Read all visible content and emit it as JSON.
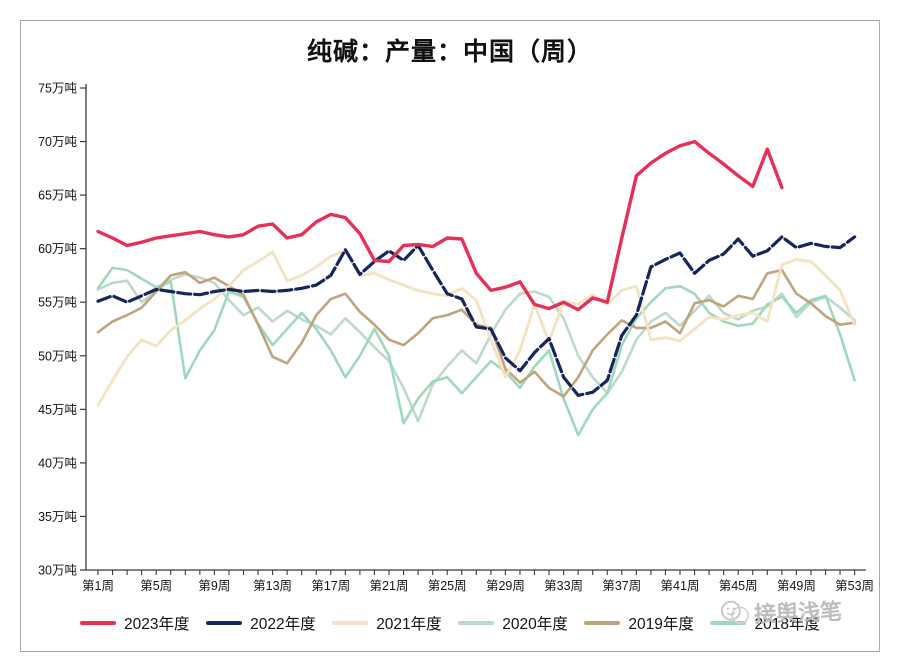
{
  "title": "纯碱：产量：中国（周）",
  "watermark": {
    "text": "接舆浅笔",
    "icon": "smiley-doodle-icon",
    "color": "#bdbdbd"
  },
  "axes": {
    "y_tick_labels": [
      "30万吨",
      "35万吨",
      "40万吨",
      "45万吨",
      "50万吨",
      "55万吨",
      "60万吨",
      "65万吨",
      "70万吨",
      "75万吨"
    ],
    "x_tick_labels": [
      "第1周",
      "第5周",
      "第9周",
      "第13周",
      "第17周",
      "第21周",
      "第25周",
      "第29周",
      "第33周",
      "第37周",
      "第41周",
      "第45周",
      "第49周",
      "第53周"
    ]
  },
  "chart_data": {
    "type": "line",
    "title": "纯碱：产量：中国（周）",
    "xlabel": "",
    "ylabel": "万吨",
    "ylim": [
      30,
      75
    ],
    "y_ticks": [
      30,
      35,
      40,
      45,
      50,
      55,
      60,
      65,
      70,
      75
    ],
    "x_weeks": 53,
    "x_labeled_weeks": [
      1,
      5,
      9,
      13,
      17,
      21,
      25,
      29,
      33,
      37,
      41,
      45,
      49,
      53
    ],
    "grid": false,
    "legend_position": "bottom",
    "series": [
      {
        "name": "2020年度",
        "color": "#bcd9cc",
        "width": 2.6,
        "dash": "",
        "start_week": 1,
        "values": [
          56.2,
          56.8,
          57.0,
          55.0,
          56.0,
          57.1,
          57.6,
          57.3,
          56.8,
          55.2,
          53.8,
          54.5,
          53.2,
          54.2,
          53.4,
          52.8,
          52.0,
          53.5,
          52.2,
          50.8,
          49.5,
          47.0,
          43.9,
          47.3,
          49.0,
          50.5,
          49.3,
          52.0,
          54.3,
          55.8,
          56.0,
          55.5,
          53.5,
          50.0,
          48.0,
          46.5,
          48.5,
          51.5,
          53.2,
          54.0,
          52.8,
          54.2,
          55.6,
          54.0,
          53.4,
          54.2,
          54.6,
          55.8,
          53.6,
          55.0,
          55.5,
          54.5,
          53.3
        ]
      },
      {
        "name": "2018年度",
        "color": "#9fd9bb",
        "width": 2.6,
        "dash": "",
        "start_week": 1,
        "values": [
          56.3,
          58.2,
          58.0,
          57.2,
          56.4,
          56.9,
          47.9,
          50.5,
          52.4,
          56.0,
          55.5,
          53.0,
          51.0,
          52.5,
          54.0,
          52.5,
          50.5,
          48.0,
          50.0,
          52.5,
          50.0,
          43.7,
          46.0,
          47.6,
          48.0,
          46.5,
          48.0,
          49.5,
          48.5,
          47.0,
          49.0,
          50.5,
          46.0,
          42.6,
          45.0,
          46.5,
          51.0,
          53.5,
          55.0,
          56.3,
          56.5,
          55.8,
          54.0,
          53.2,
          52.8,
          53.0,
          54.8,
          55.5,
          54.0,
          55.2,
          55.6,
          52.0,
          47.7
        ]
      },
      {
        "name": "2019年度",
        "color": "#bfa47d",
        "width": 2.6,
        "dash": "",
        "start_week": 1,
        "values": [
          52.2,
          53.2,
          53.8,
          54.5,
          56.0,
          57.5,
          57.8,
          56.8,
          57.3,
          56.5,
          55.7,
          52.9,
          49.9,
          49.3,
          51.2,
          53.8,
          55.3,
          55.8,
          54.1,
          52.9,
          51.5,
          51.0,
          52.1,
          53.5,
          53.8,
          54.3,
          52.9,
          52.6,
          48.8,
          47.5,
          48.5,
          47.0,
          46.2,
          48.0,
          50.5,
          52.0,
          53.3,
          52.6,
          52.6,
          53.2,
          52.1,
          54.9,
          55.2,
          54.6,
          55.6,
          55.3,
          57.7,
          58.0,
          55.8,
          54.9,
          53.7,
          52.9,
          53.1
        ]
      },
      {
        "name": "2021年度",
        "color": "#f3e3c0",
        "width": 2.8,
        "dash": "",
        "start_week": 1,
        "values": [
          45.4,
          47.7,
          49.9,
          51.5,
          50.9,
          52.4,
          53.3,
          54.4,
          55.3,
          56.5,
          58.0,
          58.8,
          59.7,
          57.0,
          57.5,
          58.3,
          59.3,
          59.8,
          57.5,
          57.7,
          57.1,
          56.6,
          56.1,
          55.8,
          55.6,
          56.3,
          55.2,
          51.5,
          48.0,
          50.5,
          54.8,
          51.3,
          55.1,
          54.8,
          55.7,
          54.8,
          56.1,
          56.5,
          51.5,
          51.7,
          51.4,
          52.5,
          53.6,
          53.4,
          53.8,
          54.0,
          53.2,
          58.5,
          59.0,
          58.8,
          57.5,
          56.1,
          52.9
        ]
      },
      {
        "name": "2022年度",
        "color": "#16265c",
        "width": 3.2,
        "dash": "13 4",
        "start_week": 1,
        "values": [
          55.1,
          55.6,
          55.0,
          55.6,
          56.2,
          56.0,
          55.8,
          55.7,
          56.0,
          56.2,
          56.0,
          56.1,
          56.0,
          56.1,
          56.3,
          56.6,
          57.5,
          59.9,
          57.6,
          58.8,
          59.8,
          58.9,
          60.3,
          58.0,
          55.8,
          55.3,
          52.7,
          52.5,
          49.8,
          48.6,
          50.3,
          51.6,
          48.0,
          46.3,
          46.6,
          47.7,
          51.9,
          53.8,
          58.3,
          59.0,
          59.6,
          57.7,
          58.9,
          59.5,
          60.9,
          59.3,
          59.8,
          61.1,
          60.1,
          60.5,
          60.2,
          60.1,
          61.1
        ]
      },
      {
        "name": "2023年度",
        "color": "#e63057",
        "width": 3.4,
        "dash": "",
        "start_week": 1,
        "values": [
          61.6,
          61.0,
          60.3,
          60.6,
          61.0,
          61.2,
          61.4,
          61.6,
          61.3,
          61.1,
          61.3,
          62.1,
          62.3,
          61.0,
          61.3,
          62.5,
          63.2,
          62.9,
          61.4,
          58.9,
          58.8,
          60.3,
          60.4,
          60.2,
          61.0,
          60.9,
          57.7,
          56.1,
          56.4,
          56.9,
          54.8,
          54.4,
          55.0,
          54.3,
          55.4,
          55.0,
          61.0,
          66.8,
          68.0,
          68.9,
          69.6,
          70.0,
          68.9,
          67.9,
          66.8,
          65.8,
          69.3,
          65.7
        ]
      }
    ]
  },
  "legend_order": [
    "2023年度",
    "2022年度",
    "2021年度",
    "2020年度",
    "2019年度",
    "2018年度"
  ]
}
